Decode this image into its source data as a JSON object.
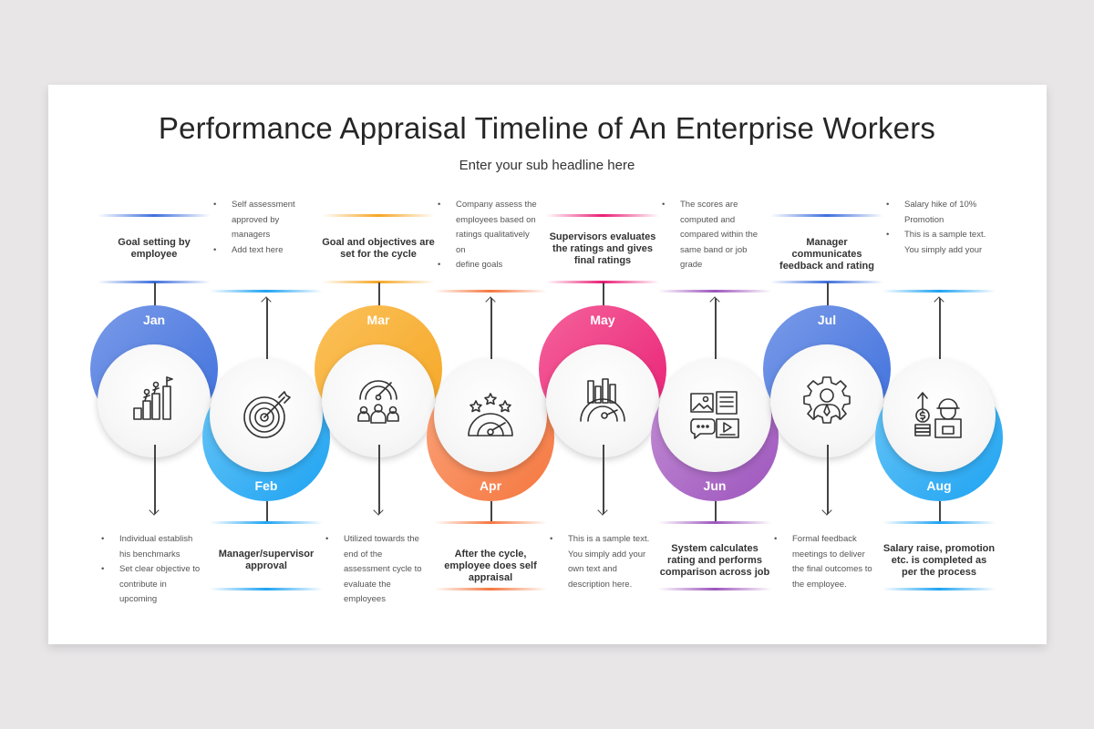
{
  "title": "Performance Appraisal Timeline of An Enterprise Workers",
  "subtitle": "Enter your sub headline here",
  "steps": [
    {
      "month": "Jan",
      "position": "top",
      "color_from": "#7b9be8",
      "color_to": "#3d6fdd",
      "heading": "Goal setting by employee",
      "bullets": [
        "Individual establish his benchmarks",
        "Set clear objective to contribute in upcoming"
      ],
      "icon": "career-growth-icon"
    },
    {
      "month": "Feb",
      "position": "bottom",
      "color_from": "#6cc7f7",
      "color_to": "#1ea3f2",
      "heading": "Manager/supervisor approval",
      "bullets": [
        "Self assessment approved by managers",
        "Add text here"
      ],
      "icon": "target-arrow-icon"
    },
    {
      "month": "Mar",
      "position": "top",
      "color_from": "#fbc15a",
      "color_to": "#f5a623",
      "heading": "Goal and objectives are set for the cycle",
      "bullets": [
        "Utilized towards the end of the assessment cycle to evaluate the employees"
      ],
      "icon": "team-performance-meter-icon"
    },
    {
      "month": "Apr",
      "position": "bottom",
      "color_from": "#fba57d",
      "color_to": "#f5773f",
      "heading": "After the cycle, employee does self appraisal",
      "bullets": [
        "Company assess the employees based on ratings qualitatively on",
        "define goals"
      ],
      "icon": "rating-meter-icon"
    },
    {
      "month": "May",
      "position": "top",
      "color_from": "#f5639b",
      "color_to": "#e91e75",
      "heading": "Supervisors evaluates the ratings and gives final ratings",
      "bullets": [
        "This is a sample text. You simply add your own text and description here."
      ],
      "icon": "performance-gauge-icon"
    },
    {
      "month": "Jun",
      "position": "bottom",
      "color_from": "#c590d6",
      "color_to": "#9d55bd",
      "heading": "System calculates rating and performs comparison across job",
      "bullets": [
        "The scores are computed and compared within the same band or job grade"
      ],
      "icon": "media-content-icon"
    },
    {
      "month": "Jul",
      "position": "top",
      "color_from": "#7b9be8",
      "color_to": "#3d6fdd",
      "heading": "Manager communicates feedback and rating",
      "bullets": [
        "Formal feedback meetings to deliver the final outcomes to the employee."
      ],
      "icon": "employee-gear-icon"
    },
    {
      "month": "Aug",
      "position": "bottom",
      "color_from": "#6cc7f7",
      "color_to": "#1ea3f2",
      "heading": "Salary raise, promotion etc. is completed as per the process",
      "bullets": [
        "Salary hike of 10% Promotion",
        "This is a sample text. You simply add your"
      ],
      "icon": "salary-worker-icon"
    }
  ]
}
